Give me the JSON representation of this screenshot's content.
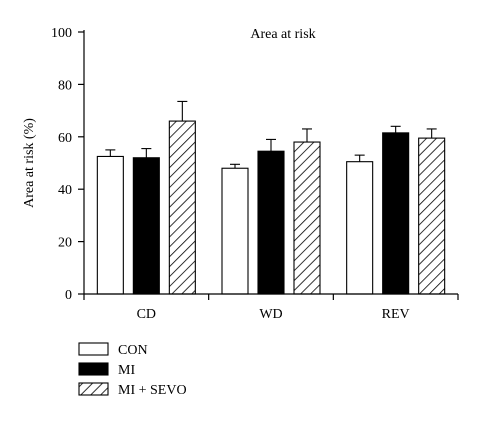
{
  "chart_data": {
    "type": "bar",
    "title": "Area at risk",
    "xlabel": "",
    "ylabel": "Area at risk (%)",
    "ylim": [
      0,
      100
    ],
    "yticks": [
      0,
      20,
      40,
      60,
      80,
      100
    ],
    "categories": [
      "CD",
      "WD",
      "REV"
    ],
    "legend_position": "bottom-left",
    "series": [
      {
        "name": "CON",
        "fill": "white",
        "values": [
          52.5,
          48,
          50.5
        ],
        "errors": [
          2.5,
          1.5,
          2.5
        ]
      },
      {
        "name": "MI",
        "fill": "black",
        "values": [
          52,
          54.5,
          61.5
        ],
        "errors": [
          3.5,
          4.5,
          2.5
        ]
      },
      {
        "name": "MI + SEVO",
        "fill": "hatched",
        "values": [
          66,
          58,
          59.5
        ],
        "errors": [
          7.5,
          5,
          3.5
        ]
      }
    ],
    "colors": {
      "stroke": "#000000",
      "background": "#ffffff"
    }
  }
}
